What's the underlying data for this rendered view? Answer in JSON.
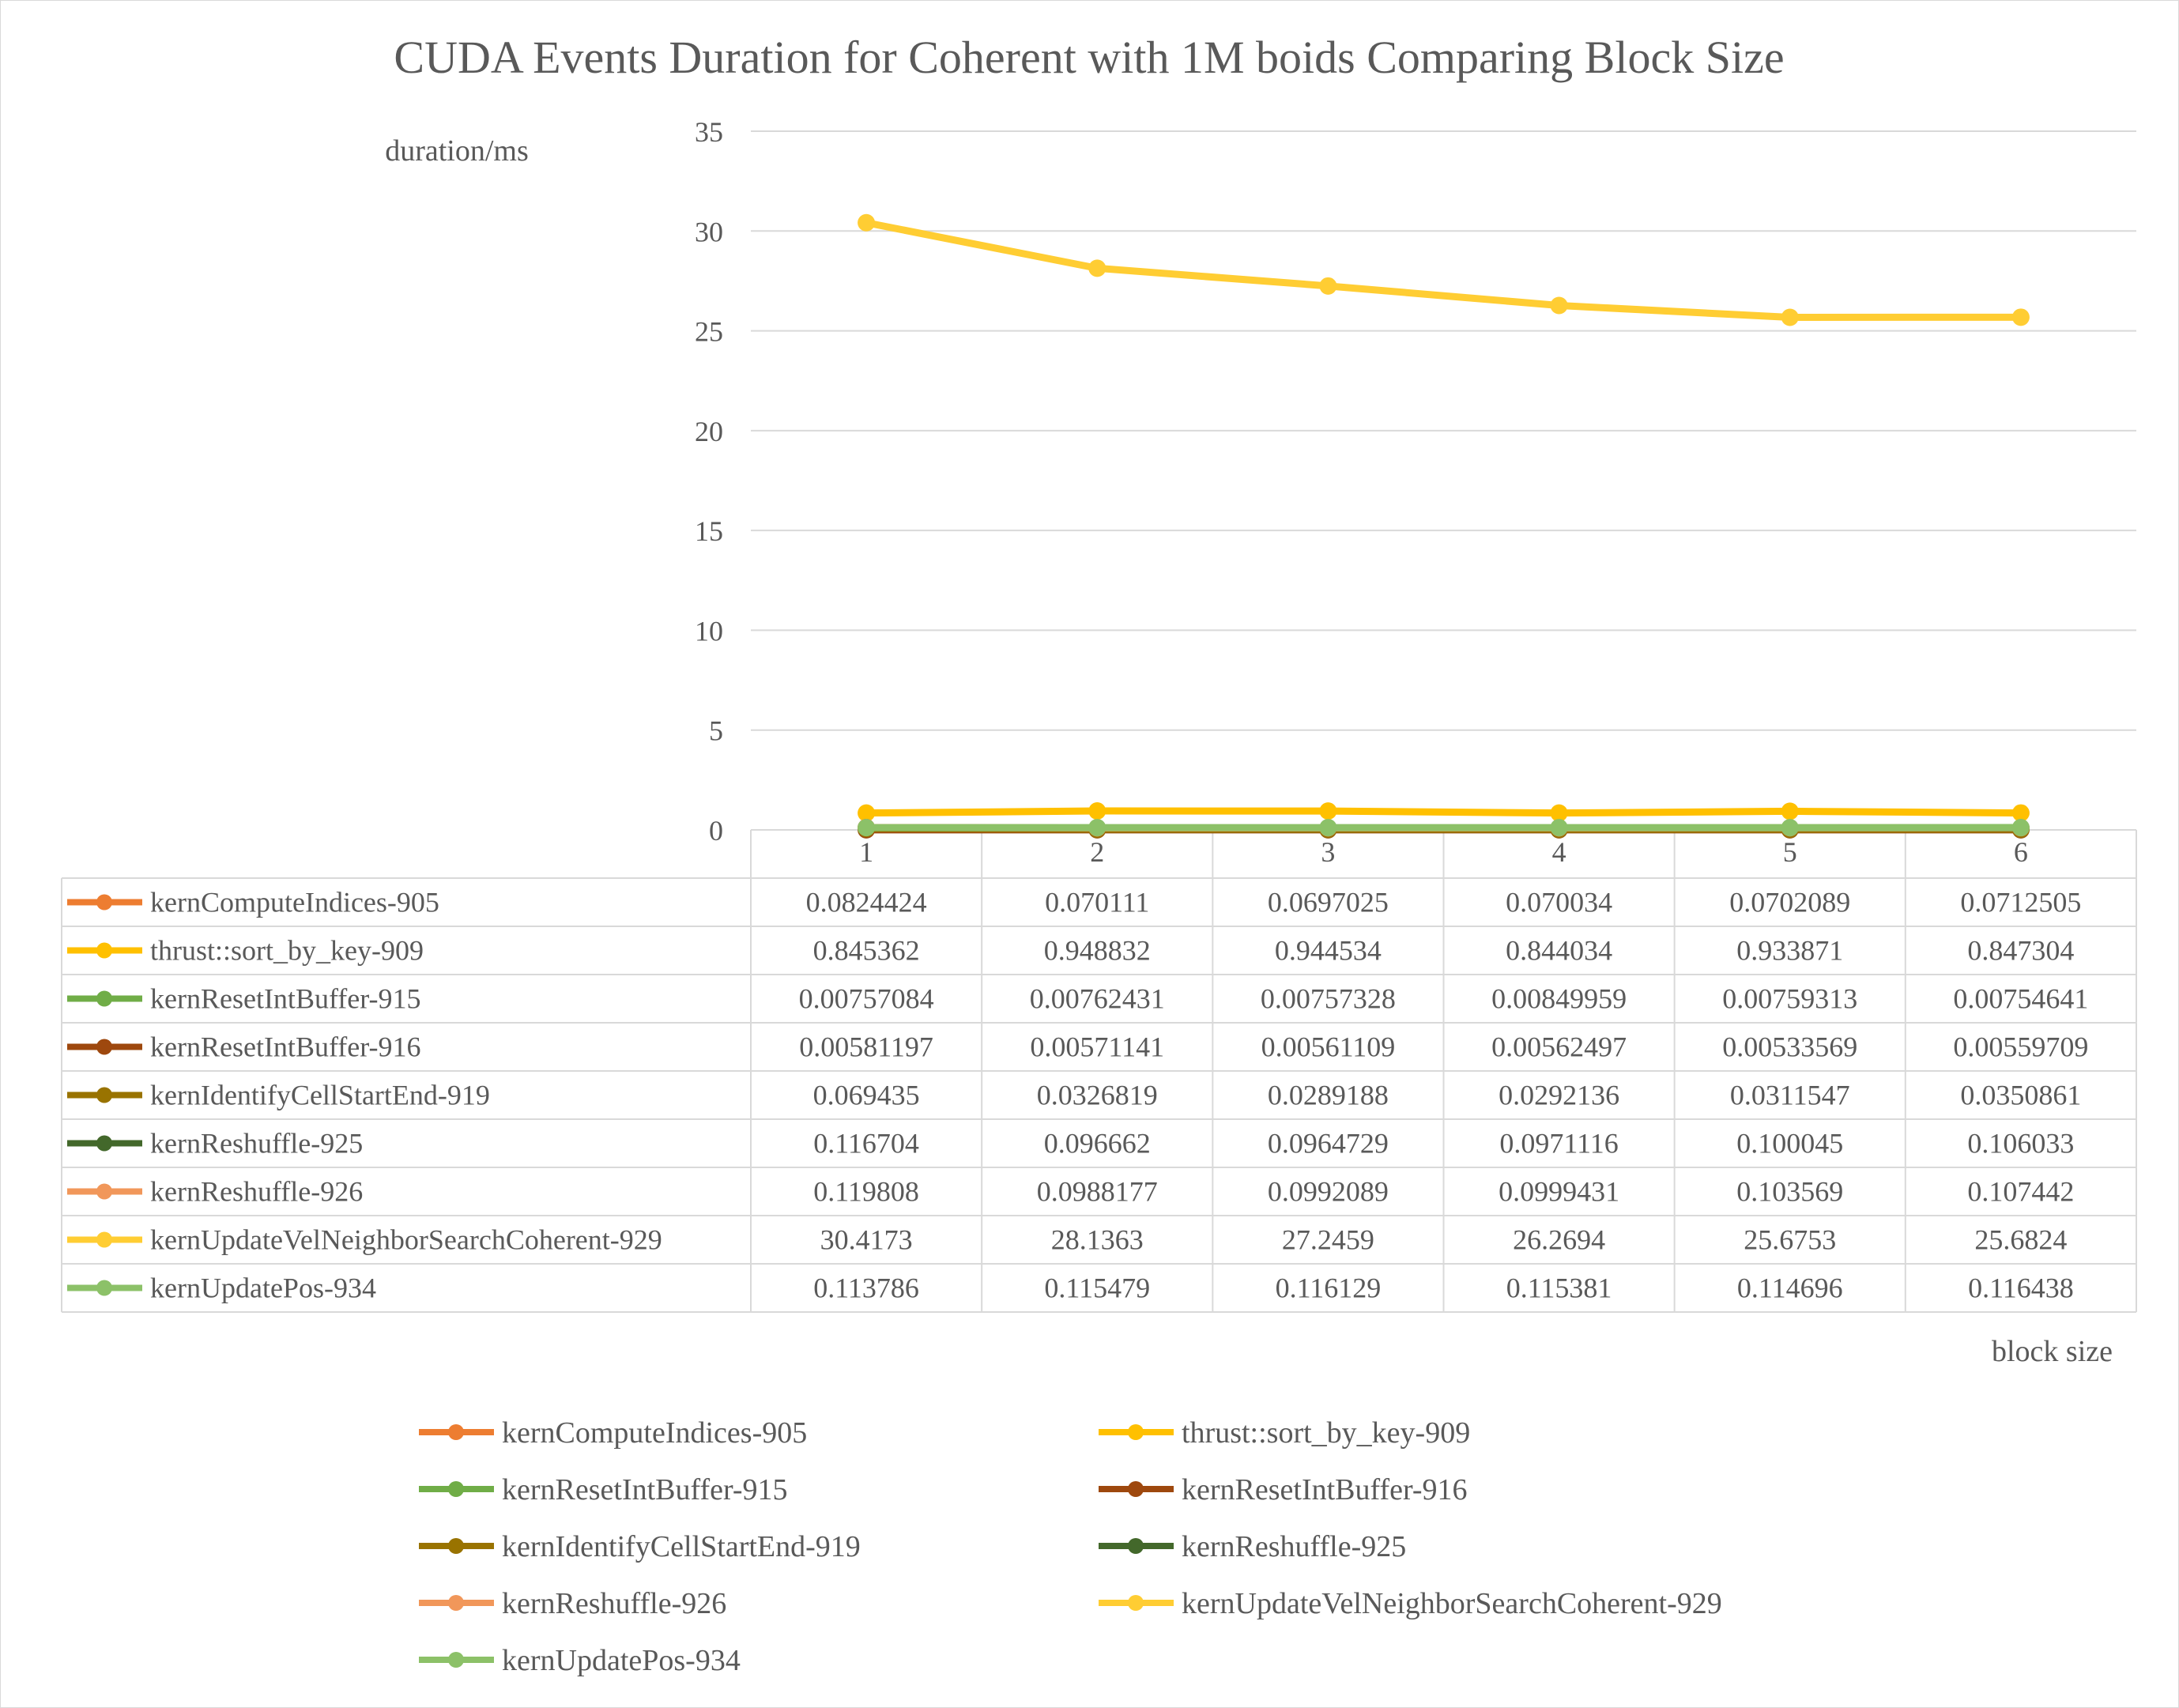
{
  "chart_data": {
    "type": "line",
    "title": "CUDA Events Duration for Coherent with 1M boids Comparing Block Size",
    "ylabel": "duration/ms",
    "xlabel": "block size",
    "categories": [
      "1",
      "2",
      "3",
      "4",
      "5",
      "6"
    ],
    "ylim": [
      0,
      35
    ],
    "yticks": [
      0,
      5,
      10,
      15,
      20,
      25,
      30,
      35
    ],
    "grid": true,
    "legend_position": "bottom",
    "data_table": true,
    "series": [
      {
        "name": "kernComputeIndices-905",
        "color": "#ED7D31",
        "values": [
          0.0824424,
          0.070111,
          0.0697025,
          0.070034,
          0.0702089,
          0.0712505
        ],
        "labels": [
          "0.0824424",
          "0.070111",
          "0.0697025",
          "0.070034",
          "0.0702089",
          "0.0712505"
        ]
      },
      {
        "name": "thrust::sort_by_key-909",
        "color": "#FFC000",
        "values": [
          0.845362,
          0.948832,
          0.944534,
          0.844034,
          0.933871,
          0.847304
        ],
        "labels": [
          "0.845362",
          "0.948832",
          "0.944534",
          "0.844034",
          "0.933871",
          "0.847304"
        ]
      },
      {
        "name": "kernResetIntBuffer-915",
        "color": "#70AD47",
        "values": [
          0.00757084,
          0.00762431,
          0.00757328,
          0.00849959,
          0.00759313,
          0.00754641
        ],
        "labels": [
          "0.00757084",
          "0.00762431",
          "0.00757328",
          "0.00849959",
          "0.00759313",
          "0.00754641"
        ]
      },
      {
        "name": "kernResetIntBuffer-916",
        "color": "#9E480E",
        "values": [
          0.00581197,
          0.00571141,
          0.00561109,
          0.00562497,
          0.00533569,
          0.00559709
        ],
        "labels": [
          "0.00581197",
          "0.00571141",
          "0.00561109",
          "0.00562497",
          "0.00533569",
          "0.00559709"
        ]
      },
      {
        "name": "kernIdentifyCellStartEnd-919",
        "color": "#997300",
        "values": [
          0.069435,
          0.0326819,
          0.0289188,
          0.0292136,
          0.0311547,
          0.0350861
        ],
        "labels": [
          "0.069435",
          "0.0326819",
          "0.0289188",
          "0.0292136",
          "0.0311547",
          "0.0350861"
        ]
      },
      {
        "name": "kernReshuffle-925",
        "color": "#43682B",
        "values": [
          0.116704,
          0.096662,
          0.0964729,
          0.0971116,
          0.100045,
          0.106033
        ],
        "labels": [
          "0.116704",
          "0.096662",
          "0.0964729",
          "0.0971116",
          "0.100045",
          "0.106033"
        ]
      },
      {
        "name": "kernReshuffle-926",
        "color": "#F1975A",
        "values": [
          0.119808,
          0.0988177,
          0.0992089,
          0.0999431,
          0.103569,
          0.107442
        ],
        "labels": [
          "0.119808",
          "0.0988177",
          "0.0992089",
          "0.0999431",
          "0.103569",
          "0.107442"
        ]
      },
      {
        "name": "kernUpdateVelNeighborSearchCoherent-929",
        "color": "#FFCD33",
        "values": [
          30.4173,
          28.1363,
          27.2459,
          26.2694,
          25.6753,
          25.6824
        ],
        "labels": [
          "30.4173",
          "28.1363",
          "27.2459",
          "26.2694",
          "25.6753",
          "25.6824"
        ]
      },
      {
        "name": "kernUpdatePos-934",
        "color": "#8CC168",
        "values": [
          0.113786,
          0.115479,
          0.116129,
          0.115381,
          0.114696,
          0.116438
        ],
        "labels": [
          "0.113786",
          "0.115479",
          "0.116129",
          "0.115381",
          "0.114696",
          "0.116438"
        ]
      }
    ]
  }
}
